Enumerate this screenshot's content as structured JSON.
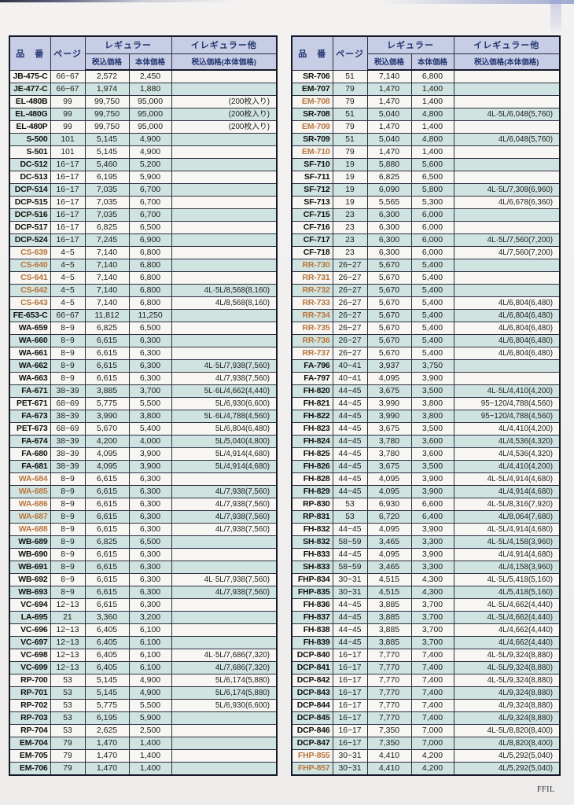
{
  "watermark": "FFIL",
  "colors": {
    "header_bg": "#c6cde4",
    "header_text": "#22356f",
    "row_white": "#f7f6f3",
    "row_teal": "#cfe3e0",
    "grid_border": "#2f3042",
    "orange_code": "#b8763c",
    "page_bg": "#f1efee"
  },
  "header_labels": {
    "product": "品　番",
    "page": "ページ",
    "regular": "レギュラー",
    "tax_included": "税込価格",
    "base": "本体価格",
    "irregular": "イレギュラー他",
    "irregular_sub": "税込価格(本体価格)"
  },
  "row_fields": [
    "code",
    "page",
    "tax_included_price",
    "base_price",
    "irregular_price",
    "is_orange"
  ],
  "tables": [
    {
      "id": "left",
      "rows": [
        [
          "JB-475-C",
          "66~67",
          "2,572",
          "2,450",
          "",
          0
        ],
        [
          "JE-477-C",
          "66~67",
          "1,974",
          "1,880",
          "",
          0
        ],
        [
          "EL-480B",
          "99",
          "99,750",
          "95,000",
          "(200枚入り)",
          0
        ],
        [
          "EL-480G",
          "99",
          "99,750",
          "95,000",
          "(200枚入り)",
          0
        ],
        [
          "EL-480P",
          "99",
          "99,750",
          "95,000",
          "(200枚入り)",
          0
        ],
        [
          "S-500",
          "101",
          "5,145",
          "4,900",
          "",
          0
        ],
        [
          "S-501",
          "101",
          "5,145",
          "4,900",
          "",
          0
        ],
        [
          "DC-512",
          "16~17",
          "5,460",
          "5,200",
          "",
          0
        ],
        [
          "DC-513",
          "16~17",
          "6,195",
          "5,900",
          "",
          0
        ],
        [
          "DCP-514",
          "16~17",
          "7,035",
          "6,700",
          "",
          0
        ],
        [
          "DCP-515",
          "16~17",
          "7,035",
          "6,700",
          "",
          0
        ],
        [
          "DCP-516",
          "16~17",
          "7,035",
          "6,700",
          "",
          0
        ],
        [
          "DCP-517",
          "16~17",
          "6,825",
          "6,500",
          "",
          0
        ],
        [
          "DCP-524",
          "16~17",
          "7,245",
          "6,900",
          "",
          0
        ],
        [
          "CS-639",
          "4~5",
          "7,140",
          "6,800",
          "",
          1
        ],
        [
          "CS-640",
          "4~5",
          "7,140",
          "6,800",
          "",
          1
        ],
        [
          "CS-641",
          "4~5",
          "7,140",
          "6,800",
          "",
          1
        ],
        [
          "CS-642",
          "4~5",
          "7,140",
          "6,800",
          "4L·5L/8,568(8,160)",
          1
        ],
        [
          "CS-643",
          "4~5",
          "7,140",
          "6,800",
          "4L/8,568(8,160)",
          1
        ],
        [
          "FE-653-C",
          "66~67",
          "11,812",
          "11,250",
          "",
          0
        ],
        [
          "WA-659",
          "8~9",
          "6,825",
          "6,500",
          "",
          0
        ],
        [
          "WA-660",
          "8~9",
          "6,615",
          "6,300",
          "",
          0
        ],
        [
          "WA-661",
          "8~9",
          "6,615",
          "6,300",
          "",
          0
        ],
        [
          "WA-662",
          "8~9",
          "6,615",
          "6,300",
          "4L·5L/7,938(7,560)",
          0
        ],
        [
          "WA-663",
          "8~9",
          "6,615",
          "6,300",
          "4L/7,938(7,560)",
          0
        ],
        [
          "FA-671",
          "38~39",
          "3,885",
          "3,700",
          "5L·6L/4,662(4,440)",
          0
        ],
        [
          "PET-671",
          "68~69",
          "5,775",
          "5,500",
          "5L/6,930(6,600)",
          0
        ],
        [
          "FA-673",
          "38~39",
          "3,990",
          "3,800",
          "5L·6L/4,788(4,560)",
          0
        ],
        [
          "PET-673",
          "68~69",
          "5,670",
          "5,400",
          "5L/6,804(6,480)",
          0
        ],
        [
          "FA-674",
          "38~39",
          "4,200",
          "4,000",
          "5L/5,040(4,800)",
          0
        ],
        [
          "FA-680",
          "38~39",
          "4,095",
          "3,900",
          "5L/4,914(4,680)",
          0
        ],
        [
          "FA-681",
          "38~39",
          "4,095",
          "3,900",
          "5L/4,914(4,680)",
          0
        ],
        [
          "WA-684",
          "8~9",
          "6,615",
          "6,300",
          "",
          1
        ],
        [
          "WA-685",
          "8~9",
          "6,615",
          "6,300",
          "4L/7,938(7,560)",
          1
        ],
        [
          "WA-686",
          "8~9",
          "6,615",
          "6,300",
          "4L/7,938(7,560)",
          1
        ],
        [
          "WA-687",
          "8~9",
          "6,615",
          "6,300",
          "4L/7,938(7,560)",
          1
        ],
        [
          "WA-688",
          "8~9",
          "6,615",
          "6,300",
          "4L/7,938(7,560)",
          1
        ],
        [
          "WB-689",
          "8~9",
          "6,825",
          "6,500",
          "",
          0
        ],
        [
          "WB-690",
          "8~9",
          "6,615",
          "6,300",
          "",
          0
        ],
        [
          "WB-691",
          "8~9",
          "6,615",
          "6,300",
          "",
          0
        ],
        [
          "WB-692",
          "8~9",
          "6,615",
          "6,300",
          "4L·5L/7,938(7,560)",
          0
        ],
        [
          "WB-693",
          "8~9",
          "6,615",
          "6,300",
          "4L/7,938(7,560)",
          0
        ],
        [
          "VC-694",
          "12~13",
          "6,615",
          "6,300",
          "",
          0
        ],
        [
          "LA-695",
          "21",
          "3,360",
          "3,200",
          "",
          0
        ],
        [
          "VC-696",
          "12~13",
          "6,405",
          "6,100",
          "",
          0
        ],
        [
          "VC-697",
          "12~13",
          "6,405",
          "6,100",
          "",
          0
        ],
        [
          "VC-698",
          "12~13",
          "6,405",
          "6,100",
          "4L·5L/7,686(7,320)",
          0
        ],
        [
          "VC-699",
          "12~13",
          "6,405",
          "6,100",
          "4L/7,686(7,320)",
          0
        ],
        [
          "RP-700",
          "53",
          "5,145",
          "4,900",
          "5L/6,174(5,880)",
          0
        ],
        [
          "RP-701",
          "53",
          "5,145",
          "4,900",
          "5L/6,174(5,880)",
          0
        ],
        [
          "RP-702",
          "53",
          "5,775",
          "5,500",
          "5L/6,930(6,600)",
          0
        ],
        [
          "RP-703",
          "53",
          "6,195",
          "5,900",
          "",
          0
        ],
        [
          "RP-704",
          "53",
          "2,625",
          "2,500",
          "",
          0
        ],
        [
          "EM-704",
          "79",
          "1,470",
          "1,400",
          "",
          0
        ],
        [
          "EM-705",
          "79",
          "1,470",
          "1,400",
          "",
          0
        ],
        [
          "EM-706",
          "79",
          "1,470",
          "1,400",
          "",
          0
        ]
      ]
    },
    {
      "id": "right",
      "rows": [
        [
          "SR-706",
          "51",
          "7,140",
          "6,800",
          "",
          0
        ],
        [
          "EM-707",
          "79",
          "1,470",
          "1,400",
          "",
          0
        ],
        [
          "EM-708",
          "79",
          "1,470",
          "1,400",
          "",
          1
        ],
        [
          "SR-708",
          "51",
          "5,040",
          "4,800",
          "4L·5L/6,048(5,760)",
          0
        ],
        [
          "EM-709",
          "79",
          "1,470",
          "1,400",
          "",
          1
        ],
        [
          "SR-709",
          "51",
          "5,040",
          "4,800",
          "4L/6,048(5,760)",
          0
        ],
        [
          "EM-710",
          "79",
          "1,470",
          "1,400",
          "",
          1
        ],
        [
          "SF-710",
          "19",
          "5,880",
          "5,600",
          "",
          0
        ],
        [
          "SF-711",
          "19",
          "6,825",
          "6,500",
          "",
          0
        ],
        [
          "SF-712",
          "19",
          "6,090",
          "5,800",
          "4L·5L/7,308(6,960)",
          0
        ],
        [
          "SF-713",
          "19",
          "5,565",
          "5,300",
          "4L/6,678(6,360)",
          0
        ],
        [
          "CF-715",
          "23",
          "6,300",
          "6,000",
          "",
          0
        ],
        [
          "CF-716",
          "23",
          "6,300",
          "6,000",
          "",
          0
        ],
        [
          "CF-717",
          "23",
          "6,300",
          "6,000",
          "4L·5L/7,560(7,200)",
          0
        ],
        [
          "CF-718",
          "23",
          "6,300",
          "6,000",
          "4L/7,560(7,200)",
          0
        ],
        [
          "RR-730",
          "26~27",
          "5,670",
          "5,400",
          "",
          1
        ],
        [
          "RR-731",
          "26~27",
          "5,670",
          "5,400",
          "",
          1
        ],
        [
          "RR-732",
          "26~27",
          "5,670",
          "5,400",
          "",
          1
        ],
        [
          "RR-733",
          "26~27",
          "5,670",
          "5,400",
          "4L/6,804(6,480)",
          1
        ],
        [
          "RR-734",
          "26~27",
          "5,670",
          "5,400",
          "4L/6,804(6,480)",
          1
        ],
        [
          "RR-735",
          "26~27",
          "5,670",
          "5,400",
          "4L/6,804(6,480)",
          1
        ],
        [
          "RR-736",
          "26~27",
          "5,670",
          "5,400",
          "4L/6,804(6,480)",
          1
        ],
        [
          "RR-737",
          "26~27",
          "5,670",
          "5,400",
          "4L/6,804(6,480)",
          1
        ],
        [
          "FA-796",
          "40~41",
          "3,937",
          "3,750",
          "",
          0
        ],
        [
          "FA-797",
          "40~41",
          "4,095",
          "3,900",
          "",
          0
        ],
        [
          "FH-820",
          "44~45",
          "3,675",
          "3,500",
          "4L·5L/4,410(4,200)",
          0
        ],
        [
          "FH-821",
          "44~45",
          "3,990",
          "3,800",
          "95~120/4,788(4,560)",
          0
        ],
        [
          "FH-822",
          "44~45",
          "3,990",
          "3,800",
          "95~120/4,788(4,560)",
          0
        ],
        [
          "FH-823",
          "44~45",
          "3,675",
          "3,500",
          "4L/4,410(4,200)",
          0
        ],
        [
          "FH-824",
          "44~45",
          "3,780",
          "3,600",
          "4L/4,536(4,320)",
          0
        ],
        [
          "FH-825",
          "44~45",
          "3,780",
          "3,600",
          "4L/4,536(4,320)",
          0
        ],
        [
          "FH-826",
          "44~45",
          "3,675",
          "3,500",
          "4L/4,410(4,200)",
          0
        ],
        [
          "FH-828",
          "44~45",
          "4,095",
          "3,900",
          "4L·5L/4,914(4,680)",
          0
        ],
        [
          "FH-829",
          "44~45",
          "4,095",
          "3,900",
          "4L/4,914(4,680)",
          0
        ],
        [
          "RP-830",
          "53",
          "6,930",
          "6,600",
          "4L·5L/8,316(7,920)",
          0
        ],
        [
          "RP-831",
          "53",
          "6,720",
          "6,400",
          "4L/8,064(7,680)",
          0
        ],
        [
          "FH-832",
          "44~45",
          "4,095",
          "3,900",
          "4L·5L/4,914(4,680)",
          0
        ],
        [
          "SH-832",
          "58~59",
          "3,465",
          "3,300",
          "4L·5L/4,158(3,960)",
          0
        ],
        [
          "FH-833",
          "44~45",
          "4,095",
          "3,900",
          "4L/4,914(4,680)",
          0
        ],
        [
          "SH-833",
          "58~59",
          "3,465",
          "3,300",
          "4L/4,158(3,960)",
          0
        ],
        [
          "FHP-834",
          "30~31",
          "4,515",
          "4,300",
          "4L·5L/5,418(5,160)",
          0
        ],
        [
          "FHP-835",
          "30~31",
          "4,515",
          "4,300",
          "4L/5,418(5,160)",
          0
        ],
        [
          "FH-836",
          "44~45",
          "3,885",
          "3,700",
          "4L·5L/4,662(4,440)",
          0
        ],
        [
          "FH-837",
          "44~45",
          "3,885",
          "3,700",
          "4L·5L/4,662(4,440)",
          0
        ],
        [
          "FH-838",
          "44~45",
          "3,885",
          "3,700",
          "4L/4,662(4,440)",
          0
        ],
        [
          "FH-839",
          "44~45",
          "3,885",
          "3,700",
          "4L/4,662(4,440)",
          0
        ],
        [
          "DCP-840",
          "16~17",
          "7,770",
          "7,400",
          "4L·5L/9,324(8,880)",
          0
        ],
        [
          "DCP-841",
          "16~17",
          "7,770",
          "7,400",
          "4L·5L/9,324(8,880)",
          0
        ],
        [
          "DCP-842",
          "16~17",
          "7,770",
          "7,400",
          "4L·5L/9,324(8,880)",
          0
        ],
        [
          "DCP-843",
          "16~17",
          "7,770",
          "7,400",
          "4L/9,324(8,880)",
          0
        ],
        [
          "DCP-844",
          "16~17",
          "7,770",
          "7,400",
          "4L/9,324(8,880)",
          0
        ],
        [
          "DCP-845",
          "16~17",
          "7,770",
          "7,400",
          "4L/9,324(8,880)",
          0
        ],
        [
          "DCP-846",
          "16~17",
          "7,350",
          "7,000",
          "4L·5L/8,820(8,400)",
          0
        ],
        [
          "DCP-847",
          "16~17",
          "7,350",
          "7,000",
          "4L/8,820(8,400)",
          0
        ],
        [
          "FHP-855",
          "30~31",
          "4,410",
          "4,200",
          "4L/5,292(5,040)",
          1
        ],
        [
          "FHP-857",
          "30~31",
          "4,410",
          "4,200",
          "4L/5,292(5,040)",
          1
        ]
      ]
    }
  ]
}
